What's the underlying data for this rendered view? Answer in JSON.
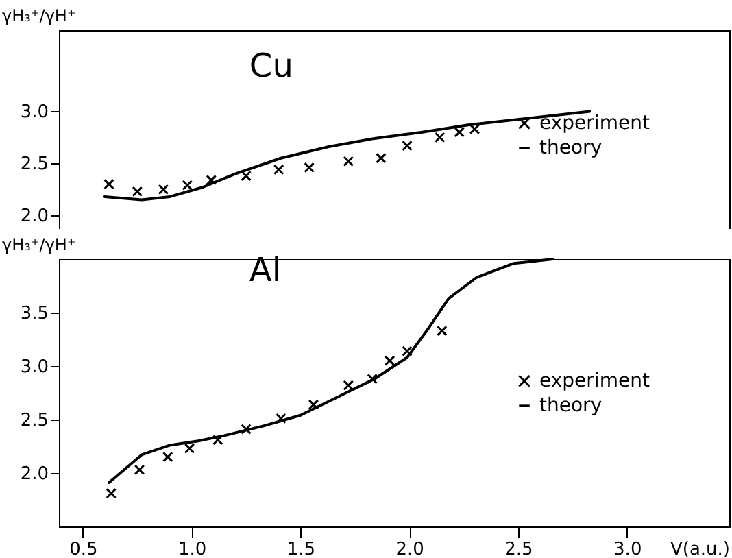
{
  "chart_data": [
    {
      "type": "scatter",
      "title": "Cu",
      "ylabel": "γH₃⁺/γH⁺",
      "xlim": [
        0.39,
        3.47
      ],
      "ylim": [
        1.87,
        3.78
      ],
      "xticks": [
        {
          "value": 0.5,
          "label": null
        },
        {
          "value": 1,
          "label": null
        },
        {
          "value": 1.5,
          "label": null
        },
        {
          "value": 2,
          "label": null
        },
        {
          "value": 2.5,
          "label": null
        },
        {
          "value": 3,
          "label": null
        }
      ],
      "yticks": [
        {
          "value": 2,
          "label": "2.0"
        },
        {
          "value": 2.5,
          "label": "2.5"
        },
        {
          "value": 3,
          "label": "3.0"
        }
      ],
      "tick_labels": "y",
      "grid": false,
      "legend": "right",
      "line_style": "solid",
      "series": [
        {
          "name": "experiment",
          "type": "scatter",
          "marker": "cross",
          "color": "#000000",
          "x": [
            0.62,
            0.75,
            0.87,
            0.98,
            1.09,
            1.25,
            1.4,
            1.54,
            1.72,
            1.87,
            1.99,
            2.14,
            2.23,
            2.3
          ],
          "values": [
            2.3,
            2.23,
            2.25,
            2.29,
            2.34,
            2.38,
            2.44,
            2.46,
            2.52,
            2.55,
            2.67,
            2.75,
            2.8,
            2.83
          ]
        },
        {
          "name": "theory",
          "type": "line",
          "marker": "none",
          "color": "#000000",
          "x": [
            0.6,
            0.77,
            0.9,
            1.05,
            1.2,
            1.41,
            1.63,
            1.84,
            2.06,
            2.27,
            2.49,
            2.83
          ],
          "values": [
            2.18,
            2.15,
            2.18,
            2.27,
            2.4,
            2.55,
            2.66,
            2.74,
            2.8,
            2.87,
            2.92,
            3.0
          ]
        }
      ]
    },
    {
      "type": "scatter",
      "title": "Al",
      "xlabel": "V(a.u.)",
      "ylabel": "γH₃⁺/γH⁺",
      "xlim": [
        0.39,
        3.47
      ],
      "ylim": [
        1.5,
        4.0
      ],
      "xticks": [
        {
          "value": 0.5,
          "label": "0.5"
        },
        {
          "value": 1,
          "label": "1.0"
        },
        {
          "value": 1.5,
          "label": "1.5"
        },
        {
          "value": 2,
          "label": "2.0"
        },
        {
          "value": 2.5,
          "label": "2.5"
        },
        {
          "value": 3,
          "label": "3.0"
        }
      ],
      "yticks": [
        {
          "value": 2,
          "label": "2.0"
        },
        {
          "value": 2.5,
          "label": "2.5"
        },
        {
          "value": 3,
          "label": "3.0"
        },
        {
          "value": 3.5,
          "label": "3.5"
        }
      ],
      "grid": false,
      "legend": "right",
      "line_style": "solid",
      "series": [
        {
          "name": "experiment",
          "type": "scatter",
          "marker": "cross",
          "color": "#000000",
          "x": [
            0.63,
            0.76,
            0.89,
            0.99,
            1.12,
            1.25,
            1.41,
            1.56,
            1.72,
            1.83,
            1.91,
            1.99,
            2.15
          ],
          "values": [
            1.81,
            2.03,
            2.15,
            2.23,
            2.31,
            2.41,
            2.51,
            2.64,
            2.82,
            2.88,
            3.05,
            3.14,
            3.33
          ]
        },
        {
          "name": "theory",
          "type": "line",
          "marker": "none",
          "color": "#000000",
          "x": [
            0.62,
            0.77,
            0.9,
            1.03,
            1.15,
            1.33,
            1.5,
            1.67,
            1.84,
            1.99,
            2.08,
            2.18,
            2.31,
            2.48,
            2.66
          ],
          "values": [
            1.91,
            2.17,
            2.26,
            2.3,
            2.35,
            2.44,
            2.54,
            2.71,
            2.88,
            3.08,
            3.33,
            3.63,
            3.83,
            3.96,
            4.0
          ]
        }
      ]
    }
  ]
}
